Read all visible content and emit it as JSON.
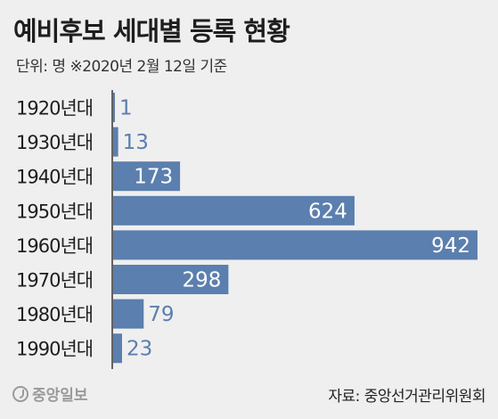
{
  "header": {
    "title": "예비후보 세대별 등록 현황",
    "subtitle": "단위: 명 ※2020년 2월 12일 기준"
  },
  "footer": {
    "logo_text": "중앙일보",
    "source": "자료: 중앙선거관리위원회"
  },
  "colors": {
    "bar": "#5b7fae",
    "background": "#efefef",
    "axis": "#333333"
  },
  "chart_data": {
    "type": "bar",
    "orientation": "horizontal",
    "categories": [
      "1920년대",
      "1930년대",
      "1940년대",
      "1950년대",
      "1960년대",
      "1970년대",
      "1980년대",
      "1990년대"
    ],
    "values": [
      1,
      13,
      173,
      624,
      942,
      298,
      79,
      23
    ],
    "title": "예비후보 세대별 등록 현황",
    "xlabel": "",
    "ylabel": "",
    "xlim": [
      0,
      942
    ],
    "grid": false,
    "legend": "none"
  }
}
